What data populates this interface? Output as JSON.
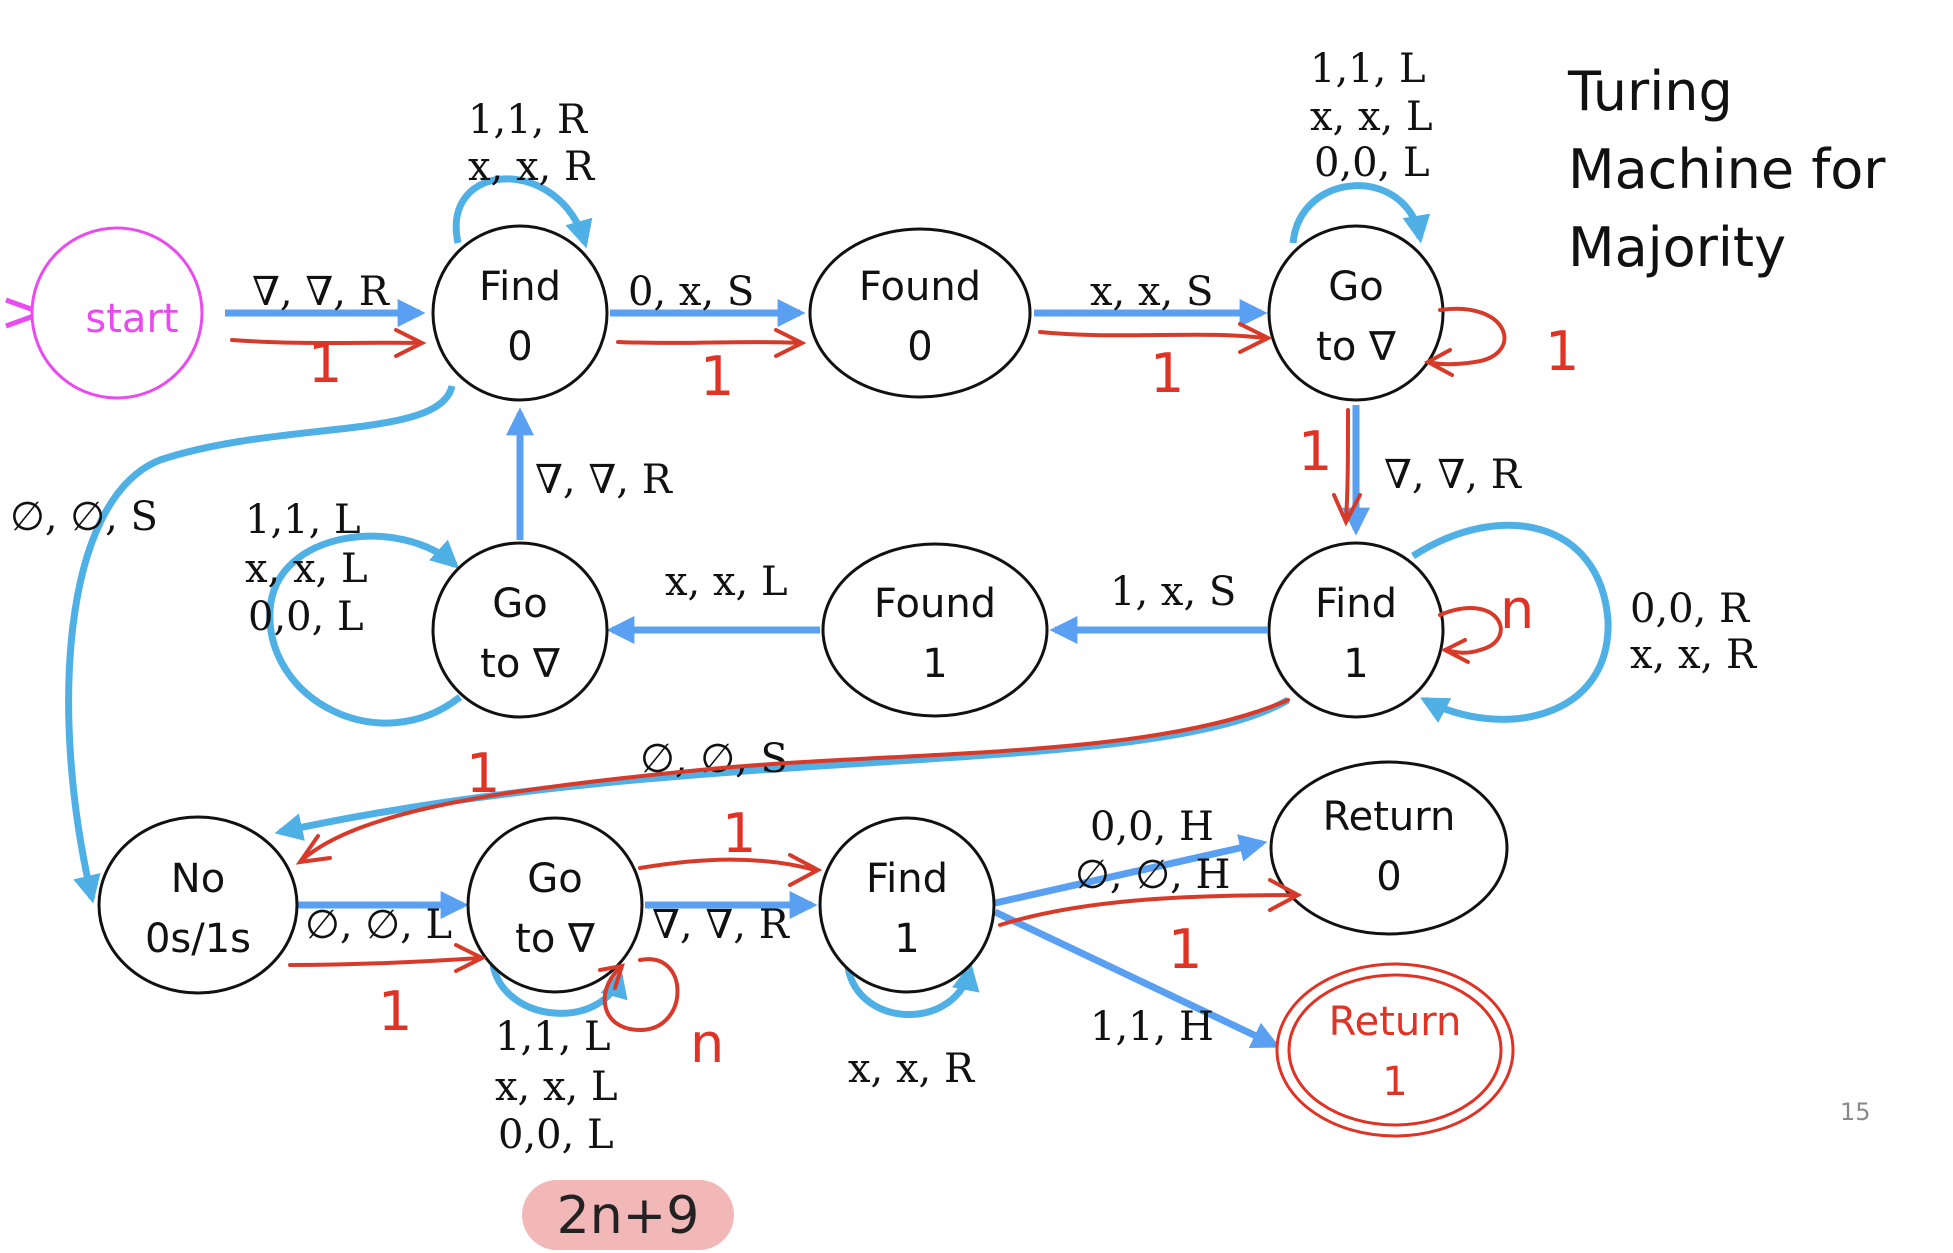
{
  "title": [
    "Turing",
    "Machine for",
    "Majority"
  ],
  "page_number": "15",
  "colors": {
    "blue": "#5aa0f2",
    "loop_blue": "#4fb0e6",
    "red": "#d83a2a",
    "start": "#e84cf0",
    "accept": "#e03325",
    "badge": "#f2b8b8"
  },
  "states": {
    "start": {
      "l1": "start"
    },
    "find0": {
      "l1": "Find",
      "l2": "0"
    },
    "found0": {
      "l1": "Found",
      "l2": "0"
    },
    "goto1": {
      "l1": "Go",
      "l2": "to ∇"
    },
    "find1": {
      "l1": "Find",
      "l2": "1"
    },
    "found1": {
      "l1": "Found",
      "l2": "1"
    },
    "goto2": {
      "l1": "Go",
      "l2": "to ∇"
    },
    "no": {
      "l1": "No",
      "l2": "0s/1s"
    },
    "goto3": {
      "l1": "Go",
      "l2": "to ∇"
    },
    "find1b": {
      "l1": "Find",
      "l2": "1"
    },
    "ret0": {
      "l1": "Return",
      "l2": "0"
    },
    "ret1": {
      "l1": "Return",
      "l2": "1"
    }
  },
  "transitions": {
    "t_start_find0": "∇, ∇, R",
    "find0_loop": [
      "1,1, R",
      "x, x, R"
    ],
    "t_find0_found0": "0, x, S",
    "t_found0_goto1": "x, x, S",
    "goto1_loop": [
      "1,1, L",
      "x, x, L",
      "0,0, L"
    ],
    "t_goto1_find1": "∇, ∇, R",
    "find1_loop": [
      "0,0, R",
      "x, x, R"
    ],
    "t_find1_found1": "1, x, S",
    "t_found1_goto2": "x, x, L",
    "goto2_loop": [
      "1,1, L",
      "x, x, L",
      "0,0, L"
    ],
    "t_goto2_find0": "∇, ∇, R",
    "t_find0_no": "∅, ∅, S",
    "t_find1_no": "∅, ∅, S",
    "t_no_goto3": "∅, ∅, L",
    "goto3_loop": [
      "1,1, L",
      "x, x, L",
      "0,0, L"
    ],
    "t_goto3_find1b": "∇, ∇, R",
    "find1b_loop": "x, x, R",
    "t_find1b_ret0": [
      "0,0, H",
      "∅, ∅, H"
    ],
    "t_find1b_ret1": "1,1, H"
  },
  "annotations": {
    "a1": "1",
    "a2": "1",
    "a3": "1",
    "a4": "1",
    "a5": "1",
    "a6": "n",
    "a7": "1",
    "a8": "1",
    "a9": "1",
    "a10": "n",
    "a11": "1",
    "budget": "2n+9"
  }
}
